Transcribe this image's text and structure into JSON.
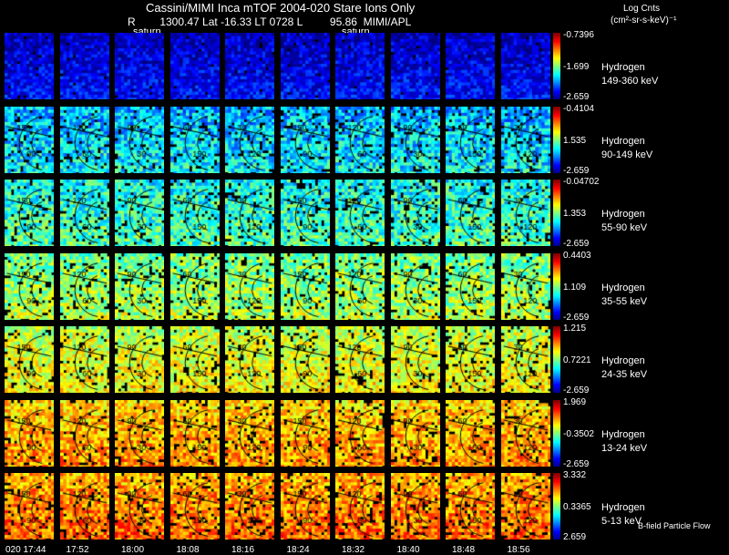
{
  "header": {
    "title": "Cassini/MIMI Inca mTOF  2004-020   Stare   Ions Only",
    "subtitle": "R        1300.47 Lat -16.33 LT 0728 L         95.86  MIMI/APL",
    "units_title": "Log Cnts",
    "units_expr": "(cm²-sr-s-keV)⁻¹"
  },
  "saturn_labels": [
    "saturn",
    "saturn"
  ],
  "bands": [
    {
      "species": "Hydrogen",
      "energy": "149-360 keV",
      "max": "-0.7396",
      "mid": "-1.699",
      "min": "-2.659"
    },
    {
      "species": "Hydrogen",
      "energy": "90-149 keV",
      "max": "-0.4104",
      "mid": "1.535",
      "min": "-2.659"
    },
    {
      "species": "Hydrogen",
      "energy": "55-90 keV",
      "max": "-0.04702",
      "mid": "1.353",
      "min": "-2.659"
    },
    {
      "species": "Hydrogen",
      "energy": "35-55 keV",
      "max": "0.4403",
      "mid": "1.109",
      "min": "-2.659"
    },
    {
      "species": "Hydrogen",
      "energy": "24-35 keV",
      "max": "1.215",
      "mid": "0.7221",
      "min": "-2.659"
    },
    {
      "species": "Hydrogen",
      "energy": "13-24 keV",
      "max": "1.969",
      "mid": "-0.3502",
      "min": "-2.659"
    },
    {
      "species": "Hydrogen",
      "energy": "5-13 keV",
      "max": "3.332",
      "mid": "0.3365",
      "min": "2.659"
    }
  ],
  "times": [
    "020 17:44",
    "17:52",
    "18:00",
    "18:08",
    "18:16",
    "18:24",
    "18:32",
    "18:40",
    "18:48",
    "18:56"
  ],
  "contour_labels": [
    "150",
    "120",
    "90",
    "60",
    "30"
  ],
  "footer_note": "B-field Particle Flow"
}
